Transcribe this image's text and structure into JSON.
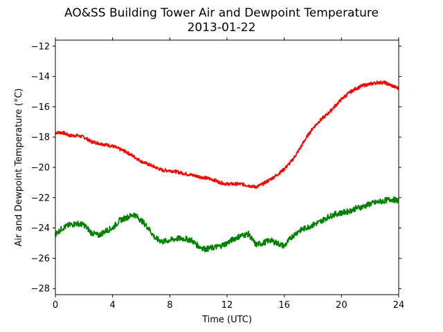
{
  "chart_data": {
    "type": "line",
    "title": "AO&SS Building Tower Air and Dewpoint Temperature",
    "subtitle": "2013-01-22",
    "xlabel": "Time (UTC)",
    "ylabel": "Air and Dewpoint Temperature (°C)",
    "xlim": [
      0,
      24
    ],
    "ylim": [
      -28.4,
      -11.6
    ],
    "xticks": [
      "0",
      "4",
      "8",
      "12",
      "16",
      "20",
      "24"
    ],
    "yticks": [
      "−12",
      "−14",
      "−16",
      "−18",
      "−20",
      "−22",
      "−24",
      "−26",
      "−28"
    ],
    "grid": false,
    "legend": "none",
    "x": [
      0,
      0.5,
      1,
      1.5,
      2,
      2.5,
      3,
      3.5,
      4,
      4.5,
      5,
      5.5,
      6,
      6.5,
      7,
      7.5,
      8,
      8.5,
      9,
      9.5,
      10,
      10.5,
      11,
      11.5,
      12,
      12.5,
      13,
      13.5,
      14,
      14.5,
      15,
      15.5,
      16,
      16.5,
      17,
      17.5,
      18,
      18.5,
      19,
      19.5,
      20,
      20.5,
      21,
      21.5,
      22,
      22.5,
      23,
      23.5,
      24
    ],
    "series": [
      {
        "color": "#ff0000",
        "values": [
          -17.7,
          -17.7,
          -17.9,
          -17.9,
          -18.0,
          -18.3,
          -18.4,
          -18.5,
          -18.6,
          -18.8,
          -19.0,
          -19.3,
          -19.6,
          -19.8,
          -20.0,
          -20.2,
          -20.2,
          -20.3,
          -20.4,
          -20.5,
          -20.6,
          -20.7,
          -20.8,
          -21.0,
          -21.1,
          -21.1,
          -21.1,
          -21.2,
          -21.3,
          -21.1,
          -20.8,
          -20.5,
          -20.1,
          -19.6,
          -18.9,
          -18.1,
          -17.4,
          -16.9,
          -16.5,
          -16.0,
          -15.5,
          -15.1,
          -14.8,
          -14.6,
          -14.5,
          -14.4,
          -14.4,
          -14.6,
          -14.8
        ]
      },
      {
        "color": "#008000",
        "values": [
          -24.4,
          -24.0,
          -23.8,
          -23.7,
          -23.8,
          -24.3,
          -24.5,
          -24.2,
          -24.0,
          -23.5,
          -23.3,
          -23.1,
          -23.5,
          -24.0,
          -24.7,
          -24.9,
          -24.8,
          -24.7,
          -24.7,
          -24.8,
          -25.2,
          -25.4,
          -25.3,
          -25.2,
          -25.0,
          -24.7,
          -24.5,
          -24.4,
          -25.1,
          -25.0,
          -24.8,
          -25.0,
          -25.2,
          -24.6,
          -24.2,
          -24.0,
          -23.8,
          -23.6,
          -23.3,
          -23.1,
          -23.0,
          -22.9,
          -22.7,
          -22.6,
          -22.4,
          -22.3,
          -22.2,
          -22.1,
          -22.2
        ]
      }
    ]
  }
}
